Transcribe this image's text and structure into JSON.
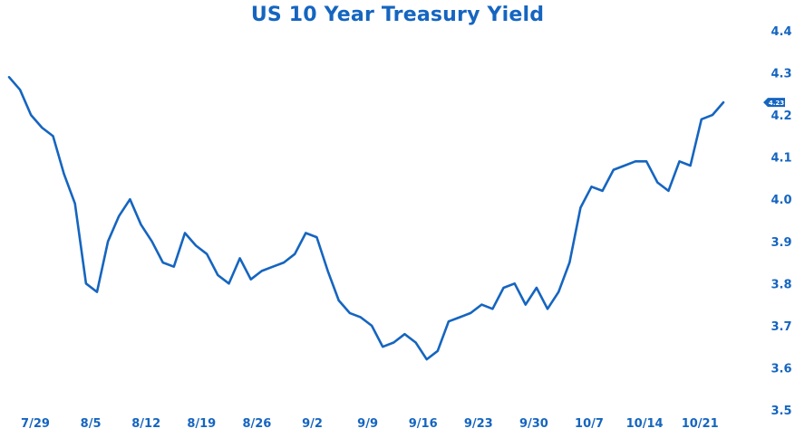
{
  "chart_data": {
    "type": "line",
    "title": "US 10 Year Treasury Yield",
    "xlabel": "",
    "ylabel": "",
    "ylim": [
      3.5,
      4.4
    ],
    "yticks": [
      "3.5",
      "3.6",
      "3.7",
      "3.8",
      "3.9",
      "4.0",
      "4.1",
      "4.2",
      "4.3",
      "4.4"
    ],
    "xticks": [
      "7/29",
      "8/5",
      "8/12",
      "8/19",
      "8/26",
      "9/2",
      "9/9",
      "9/16",
      "9/23",
      "9/30",
      "10/7",
      "10/14",
      "10/21"
    ],
    "grid": false,
    "legend": "none",
    "last_value_label": "4.23",
    "color": "#1565c0",
    "series": [
      {
        "values": [
          4.29,
          4.26,
          4.2,
          4.17,
          4.15,
          4.06,
          3.99,
          3.8,
          3.78,
          3.9,
          3.96,
          4.0,
          3.94,
          3.9,
          3.85,
          3.84,
          3.92,
          3.89,
          3.87,
          3.82,
          3.8,
          3.86,
          3.81,
          3.83,
          3.84,
          3.85,
          3.87,
          3.92,
          3.91,
          3.83,
          3.76,
          3.73,
          3.72,
          3.7,
          3.65,
          3.66,
          3.68,
          3.66,
          3.62,
          3.64,
          3.71,
          3.72,
          3.73,
          3.75,
          3.74,
          3.79,
          3.8,
          3.75,
          3.79,
          3.74,
          3.78,
          3.85,
          3.98,
          4.03,
          4.02,
          4.07,
          4.08,
          4.09,
          4.09,
          4.04,
          4.02,
          4.09,
          4.08,
          4.19,
          4.2,
          4.23
        ]
      }
    ]
  }
}
